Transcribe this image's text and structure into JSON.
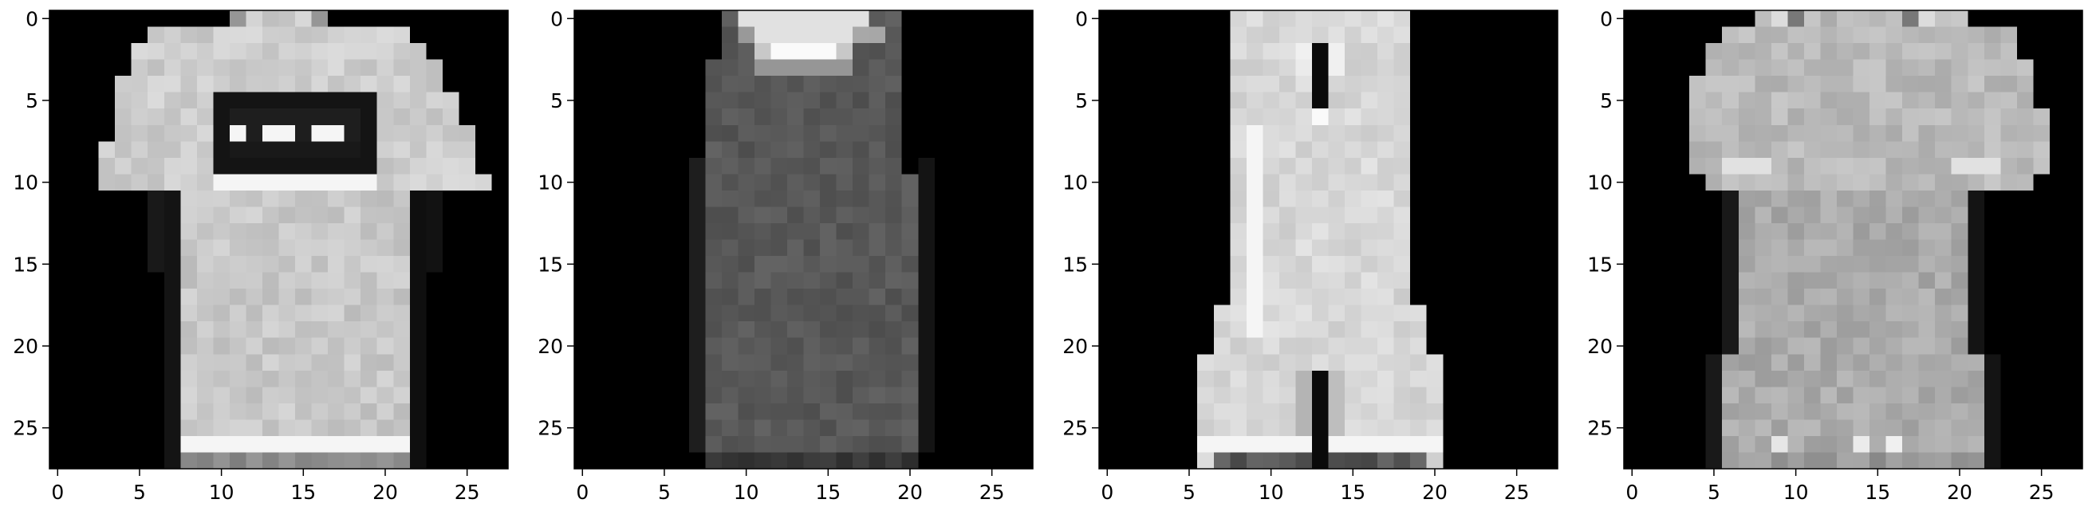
{
  "chart_data": [
    {
      "type": "heatmap",
      "colormap": "gray",
      "vmin": 0,
      "vmax": 255,
      "xlim": [
        -0.5,
        27.5
      ],
      "ylim": [
        27.5,
        -0.5
      ],
      "xticks": [
        "0",
        "5",
        "10",
        "15",
        "20",
        "25"
      ],
      "yticks": [
        "0",
        "5",
        "10",
        "15",
        "20",
        "25"
      ],
      "grid": false,
      "template": "tshirt",
      "level": 205,
      "panel_level": 160,
      "panel_dark": 20,
      "stripe_level": 245
    },
    {
      "type": "heatmap",
      "colormap": "gray",
      "vmin": 0,
      "vmax": 255,
      "xlim": [
        -0.5,
        27.5
      ],
      "ylim": [
        27.5,
        -0.5
      ],
      "xticks": [
        "0",
        "5",
        "10",
        "15",
        "20",
        "25"
      ],
      "yticks": [
        "0",
        "5",
        "10",
        "15",
        "20",
        "25"
      ],
      "grid": false,
      "template": "dress",
      "level": 88,
      "collar_level": 225
    },
    {
      "type": "heatmap",
      "colormap": "gray",
      "vmin": 0,
      "vmax": 255,
      "xlim": [
        -0.5,
        27.5
      ],
      "ylim": [
        27.5,
        -0.5
      ],
      "xticks": [
        "0",
        "5",
        "10",
        "15",
        "20",
        "25"
      ],
      "yticks": [
        "0",
        "5",
        "10",
        "15",
        "20",
        "25"
      ],
      "grid": false,
      "template": "romper",
      "level": 215,
      "edge_level": 245
    },
    {
      "type": "heatmap",
      "colormap": "gray",
      "vmin": 0,
      "vmax": 255,
      "xlim": [
        -0.5,
        27.5
      ],
      "ylim": [
        27.5,
        -0.5
      ],
      "xticks": [
        "0",
        "5",
        "10",
        "15",
        "20",
        "25"
      ],
      "yticks": [
        "0",
        "5",
        "10",
        "15",
        "20",
        "25"
      ],
      "grid": false,
      "template": "tshirt-dress",
      "level": 170,
      "cuff_level": 225
    }
  ]
}
